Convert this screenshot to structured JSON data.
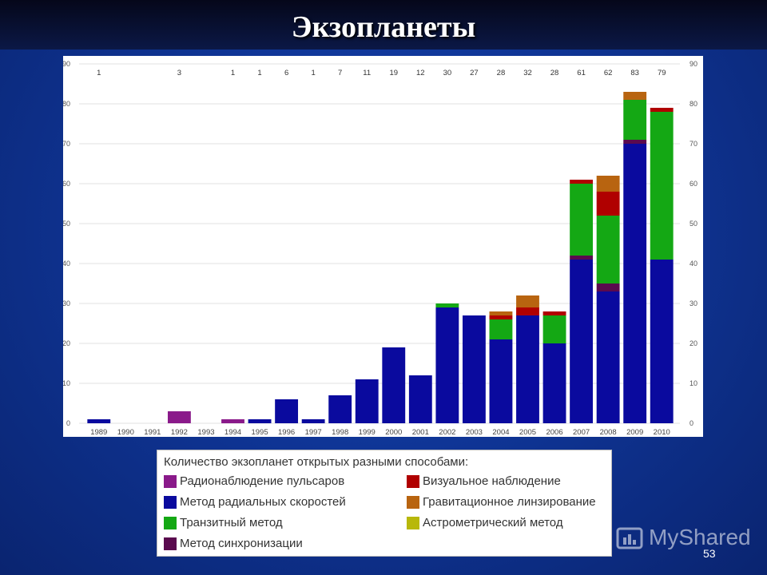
{
  "slide": {
    "title": "Экзопланеты",
    "page_number": "53",
    "watermark": "MyShared"
  },
  "legend": {
    "title": "Количество экзопланет открытых разными способами:",
    "items": [
      {
        "label": "Радионаблюдение пульсаров",
        "color": "#8a1a8a"
      },
      {
        "label": "Визуальное наблюдение",
        "color": "#b00000"
      },
      {
        "label": "Метод радиальных скоростей",
        "color": "#0a0a9e"
      },
      {
        "label": "Гравитационное линзирование",
        "color": "#b86410"
      },
      {
        "label": "Транзитный метод",
        "color": "#14a814"
      },
      {
        "label": "Астрометрический метод",
        "color": "#b8b80a"
      },
      {
        "label": "Метод синхронизации",
        "color": "#5a0a4e"
      }
    ]
  },
  "chart_data": {
    "type": "bar",
    "stacked": true,
    "ylim": [
      0,
      90
    ],
    "yticks": [
      0,
      10,
      20,
      30,
      40,
      50,
      60,
      70,
      80,
      90
    ],
    "grid": true,
    "categories": [
      "1989",
      "1990",
      "1991",
      "1992",
      "1993",
      "1994",
      "1995",
      "1996",
      "1997",
      "1998",
      "1999",
      "2000",
      "2001",
      "2002",
      "2003",
      "2004",
      "2005",
      "2006",
      "2007",
      "2008",
      "2009",
      "2010"
    ],
    "totals_labels": [
      "1",
      "",
      "",
      "3",
      "",
      "1",
      "1",
      "6",
      "1",
      "7",
      "11",
      "19",
      "12",
      "30",
      "27",
      "28",
      "32",
      "28",
      "61",
      "62",
      "83",
      "79"
    ],
    "series": [
      {
        "legend_index": 2,
        "color": "#0a0a9e",
        "values": [
          1,
          0,
          0,
          0,
          0,
          0,
          1,
          6,
          1,
          7,
          11,
          19,
          12,
          29,
          27,
          21,
          27,
          20,
          41,
          33,
          70,
          41
        ]
      },
      {
        "legend_index": 0,
        "color": "#8a1a8a",
        "values": [
          0,
          0,
          0,
          3,
          0,
          1,
          0,
          0,
          0,
          0,
          0,
          0,
          0,
          0,
          0,
          0,
          0,
          0,
          0,
          0,
          0,
          0
        ]
      },
      {
        "legend_index": 6,
        "color": "#5a0a4e",
        "values": [
          0,
          0,
          0,
          0,
          0,
          0,
          0,
          0,
          0,
          0,
          0,
          0,
          0,
          0,
          0,
          0,
          0,
          0,
          1,
          2,
          1,
          0
        ]
      },
      {
        "legend_index": 4,
        "color": "#14a814",
        "values": [
          0,
          0,
          0,
          0,
          0,
          0,
          0,
          0,
          0,
          0,
          0,
          0,
          0,
          1,
          0,
          5,
          0,
          7,
          18,
          17,
          10,
          37
        ]
      },
      {
        "legend_index": 1,
        "color": "#b00000",
        "values": [
          0,
          0,
          0,
          0,
          0,
          0,
          0,
          0,
          0,
          0,
          0,
          0,
          0,
          0,
          0,
          1,
          2,
          1,
          1,
          6,
          0,
          1
        ]
      },
      {
        "legend_index": 3,
        "color": "#b86410",
        "values": [
          0,
          0,
          0,
          0,
          0,
          0,
          0,
          0,
          0,
          0,
          0,
          0,
          0,
          0,
          0,
          1,
          3,
          0,
          0,
          4,
          2,
          0
        ]
      }
    ]
  }
}
